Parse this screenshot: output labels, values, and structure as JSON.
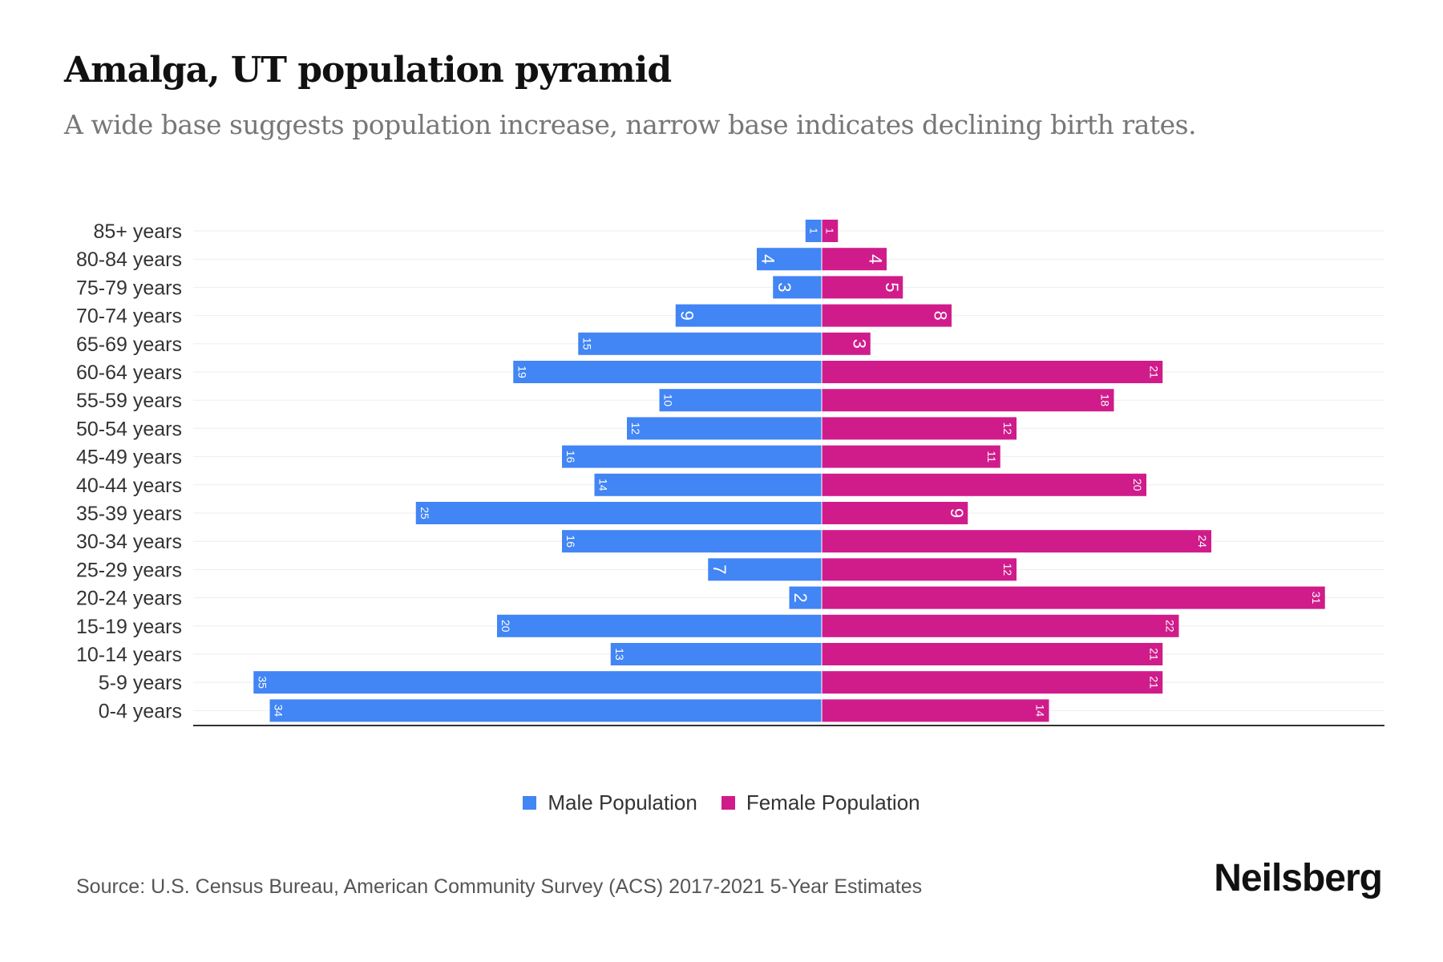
{
  "title": "Amalga, UT population pyramid",
  "subtitle": "A wide base suggests population increase, narrow base indicates declining birth rates.",
  "source": "Source: U.S. Census Bureau, American Community Survey (ACS) 2017-2021 5-Year Estimates",
  "logo": "Neilsberg",
  "colors": {
    "male": "#4285f4",
    "female": "#d01c8b"
  },
  "chart_data": {
    "type": "bar",
    "orientation": "horizontal-diverging",
    "categories": [
      "85+ years",
      "80-84 years",
      "75-79 years",
      "70-74 years",
      "65-69 years",
      "60-64 years",
      "55-59 years",
      "50-54 years",
      "45-49 years",
      "40-44 years",
      "35-39 years",
      "30-34 years",
      "25-29 years",
      "20-24 years",
      "15-19 years",
      "10-14 years",
      "5-9 years",
      "0-4 years"
    ],
    "series": [
      {
        "name": "Male Population",
        "values": [
          1,
          4,
          3,
          9,
          15,
          19,
          10,
          12,
          16,
          14,
          25,
          16,
          7,
          2,
          20,
          13,
          35,
          34
        ]
      },
      {
        "name": "Female Population",
        "values": [
          1,
          4,
          5,
          8,
          3,
          21,
          18,
          12,
          11,
          20,
          9,
          24,
          12,
          31,
          22,
          21,
          21,
          14
        ]
      }
    ],
    "xlim": [
      -37,
      36.5
    ],
    "legend": "bottom-center",
    "grid": true
  }
}
